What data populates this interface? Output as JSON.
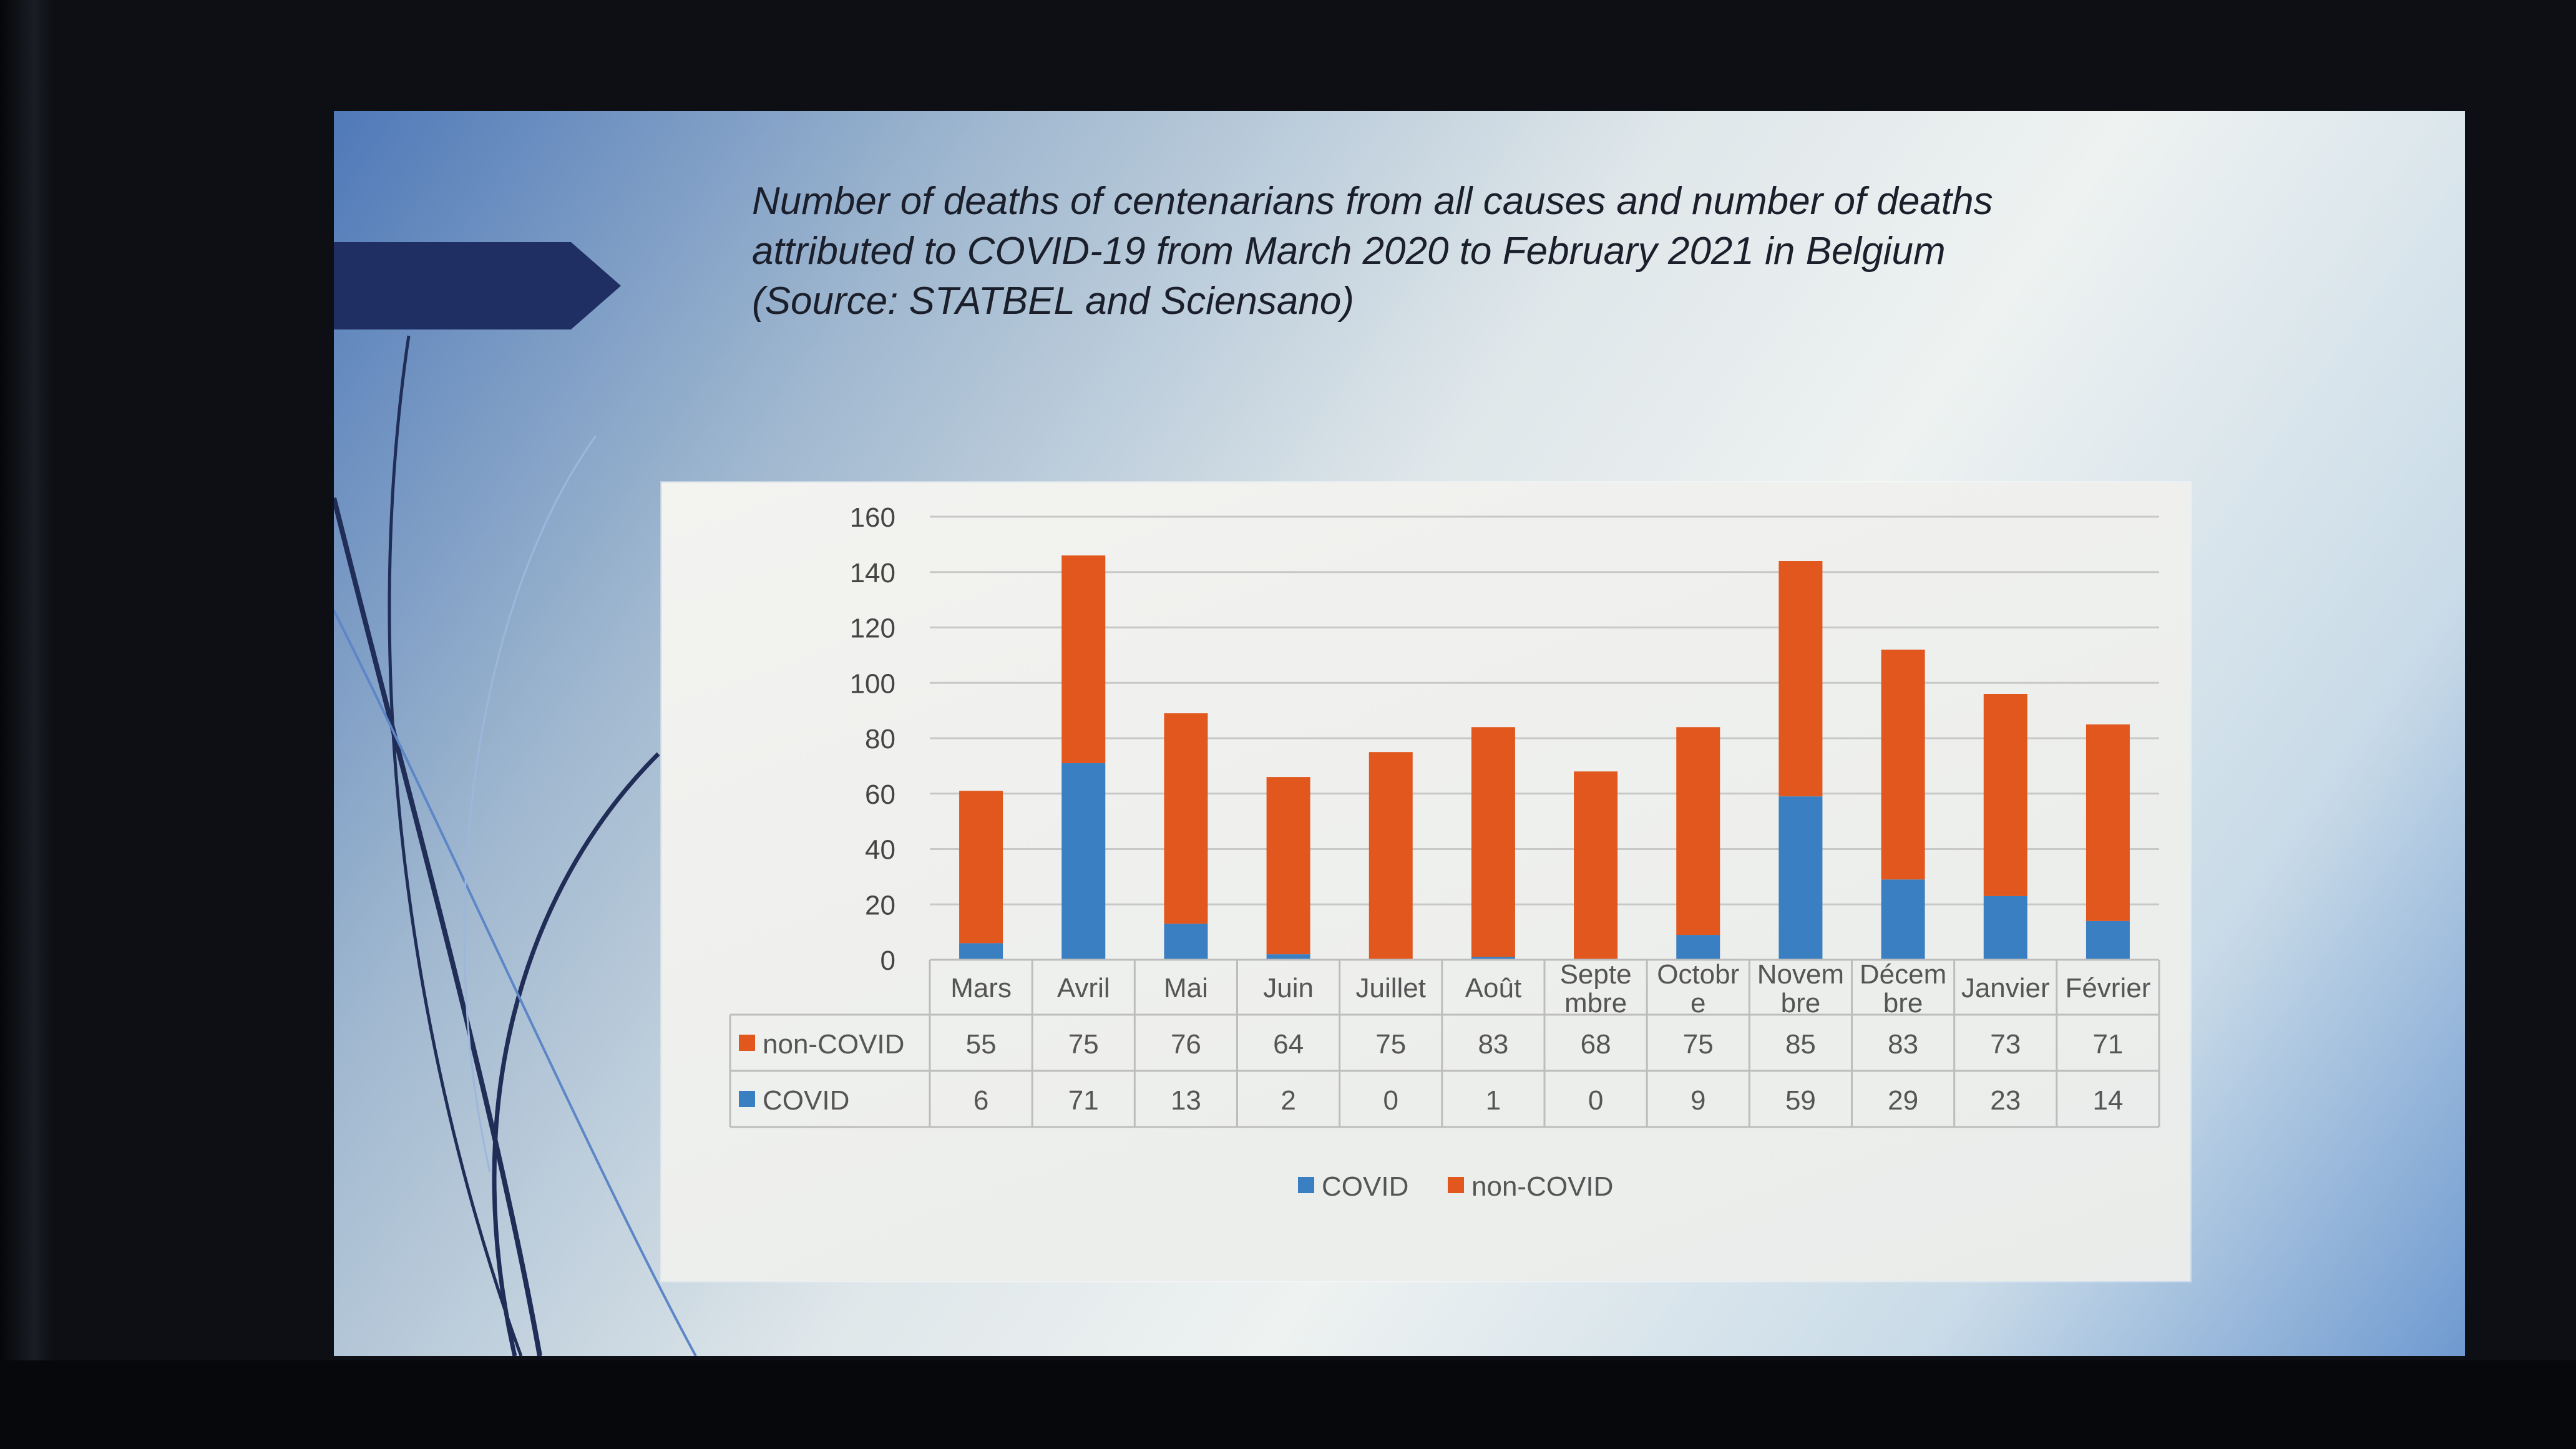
{
  "slide": {
    "title_lines": [
      "Number of deaths of centenarians from all causes and number of deaths",
      "attributed to COVID-19 from March 2020 to February 2021 in Belgium",
      "(Source: STATBEL and Sciensano)"
    ]
  },
  "chart_data": {
    "type": "bar",
    "stacked": true,
    "categories": [
      "Mars",
      "Avril",
      "Mai",
      "Juin",
      "Juillet",
      "Août",
      "Septe mbre",
      "Octobr e",
      "Novem bre",
      "Décem bre",
      "Janvier",
      "Février"
    ],
    "category_lines": [
      [
        "Mars"
      ],
      [
        "Avril"
      ],
      [
        "Mai"
      ],
      [
        "Juin"
      ],
      [
        "Juillet"
      ],
      [
        "Août"
      ],
      [
        "Septe",
        "mbre"
      ],
      [
        "Octobr",
        "e"
      ],
      [
        "Novem",
        "bre"
      ],
      [
        "Décem",
        "bre"
      ],
      [
        "Janvier"
      ],
      [
        "Février"
      ]
    ],
    "series": [
      {
        "name": "COVID",
        "color": "#3a7fc1",
        "values": [
          6,
          71,
          13,
          2,
          0,
          1,
          0,
          9,
          59,
          29,
          23,
          14
        ]
      },
      {
        "name": "non-COVID",
        "color": "#e2571e",
        "values": [
          55,
          75,
          76,
          64,
          75,
          83,
          68,
          75,
          85,
          83,
          73,
          71
        ]
      }
    ],
    "yticks": [
      0,
      20,
      40,
      60,
      80,
      100,
      120,
      140,
      160
    ],
    "ylim": [
      0,
      160
    ],
    "grid": true,
    "data_table": [
      {
        "label": "non-COVID",
        "color": "#e2571e",
        "values": [
          "55",
          "75",
          "76",
          "64",
          "75",
          "83",
          "68",
          "75",
          "85",
          "83",
          "73",
          "71"
        ]
      },
      {
        "label": "COVID",
        "color": "#3a7fc1",
        "values": [
          "6",
          "71",
          "13",
          "2",
          "0",
          "1",
          "0",
          "9",
          "59",
          "29",
          "23",
          "14"
        ]
      }
    ],
    "legend": [
      "COVID",
      "non-COVID"
    ],
    "legend_position": "bottom"
  }
}
